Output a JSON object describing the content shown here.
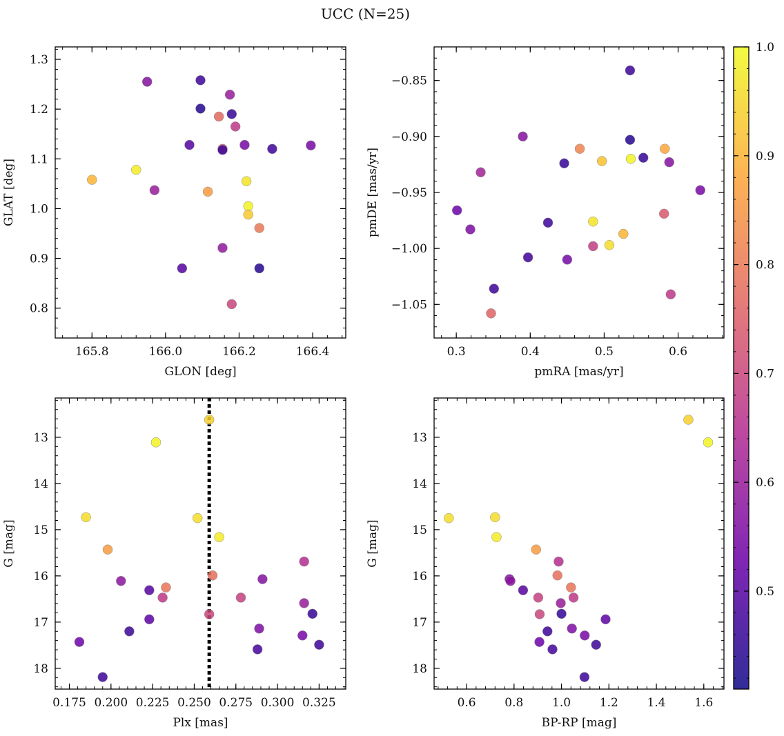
{
  "figure": {
    "title": "UCC (N=25)"
  },
  "colorbar": {
    "range": [
      0.41,
      1.0
    ],
    "ticks": [
      0.5,
      0.6,
      0.7,
      0.8,
      0.9,
      1.0
    ],
    "tick_labels": [
      "0.5",
      "0.6",
      "0.7",
      "0.8",
      "0.9",
      "1.0"
    ],
    "colormap": [
      "#0d0887",
      "#6a00a8",
      "#b12a90",
      "#e16462",
      "#fca636",
      "#f0f921"
    ]
  },
  "chart_data": [
    {
      "type": "scatter",
      "xlabel": "GLON [deg]",
      "ylabel": "GLAT [deg]",
      "xlim": [
        165.7,
        166.49
      ],
      "ylim": [
        0.74,
        1.325
      ],
      "xticks": [
        165.8,
        166.0,
        166.2,
        166.4
      ],
      "xtick_labels": [
        "165.8",
        "166.0",
        "166.2",
        "166.4"
      ],
      "yticks": [
        0.8,
        0.9,
        1.0,
        1.1,
        1.2,
        1.3
      ],
      "ytick_labels": [
        "0.8",
        "0.9",
        "1.0",
        "1.1",
        "1.2",
        "1.3"
      ],
      "inverted_y": false,
      "grid": false,
      "points": [
        {
          "x": 165.95,
          "y": 1.255,
          "c": 0.57
        },
        {
          "x": 166.095,
          "y": 1.258,
          "c": 0.47
        },
        {
          "x": 166.175,
          "y": 1.229,
          "c": 0.6
        },
        {
          "x": 166.095,
          "y": 1.201,
          "c": 0.44
        },
        {
          "x": 166.145,
          "y": 1.185,
          "c": 0.77
        },
        {
          "x": 166.18,
          "y": 1.19,
          "c": 0.46
        },
        {
          "x": 166.19,
          "y": 1.165,
          "c": 0.67
        },
        {
          "x": 166.065,
          "y": 1.128,
          "c": 0.5
        },
        {
          "x": 166.155,
          "y": 1.12,
          "c": 0.74
        },
        {
          "x": 166.155,
          "y": 1.118,
          "c": 0.47
        },
        {
          "x": 166.215,
          "y": 1.128,
          "c": 0.55
        },
        {
          "x": 166.29,
          "y": 1.12,
          "c": 0.47
        },
        {
          "x": 166.395,
          "y": 1.127,
          "c": 0.55
        },
        {
          "x": 165.8,
          "y": 1.058,
          "c": 0.9
        },
        {
          "x": 165.92,
          "y": 1.078,
          "c": 0.98
        },
        {
          "x": 165.97,
          "y": 1.037,
          "c": 0.6
        },
        {
          "x": 166.115,
          "y": 1.034,
          "c": 0.86
        },
        {
          "x": 166.22,
          "y": 1.055,
          "c": 0.97
        },
        {
          "x": 166.225,
          "y": 1.005,
          "c": 0.99
        },
        {
          "x": 166.225,
          "y": 0.988,
          "c": 0.93
        },
        {
          "x": 166.255,
          "y": 0.961,
          "c": 0.8
        },
        {
          "x": 166.155,
          "y": 0.921,
          "c": 0.59
        },
        {
          "x": 166.045,
          "y": 0.88,
          "c": 0.5
        },
        {
          "x": 166.255,
          "y": 0.88,
          "c": 0.44
        },
        {
          "x": 166.18,
          "y": 0.808,
          "c": 0.7
        }
      ]
    },
    {
      "type": "scatter",
      "xlabel": "pmRA [mas/yr]",
      "ylabel": "pmDE [mas/yr]",
      "xlim": [
        0.27,
        0.662
      ],
      "ylim": [
        -1.08,
        -0.82
      ],
      "xticks": [
        0.3,
        0.4,
        0.5,
        0.6
      ],
      "xtick_labels": [
        "0.3",
        "0.4",
        "0.5",
        "0.6"
      ],
      "yticks": [
        -1.05,
        -1.0,
        -0.95,
        -0.9,
        -0.85
      ],
      "ytick_labels": [
        "−1.05",
        "−1.00",
        "−0.95",
        "−0.90",
        "−0.85"
      ],
      "inverted_y": false,
      "grid": false,
      "points": [
        {
          "x": 0.535,
          "y": -0.841,
          "c": 0.47
        },
        {
          "x": 0.39,
          "y": -0.9,
          "c": 0.57
        },
        {
          "x": 0.535,
          "y": -0.903,
          "c": 0.44
        },
        {
          "x": 0.467,
          "y": -0.911,
          "c": 0.82
        },
        {
          "x": 0.582,
          "y": -0.911,
          "c": 0.88
        },
        {
          "x": 0.497,
          "y": -0.922,
          "c": 0.92
        },
        {
          "x": 0.536,
          "y": -0.92,
          "c": 0.99
        },
        {
          "x": 0.553,
          "y": -0.919,
          "c": 0.46
        },
        {
          "x": 0.446,
          "y": -0.924,
          "c": 0.46
        },
        {
          "x": 0.588,
          "y": -0.923,
          "c": 0.57
        },
        {
          "x": 0.333,
          "y": -0.932,
          "c": 0.62
        },
        {
          "x": 0.63,
          "y": -0.948,
          "c": 0.55
        },
        {
          "x": 0.301,
          "y": -0.966,
          "c": 0.53
        },
        {
          "x": 0.581,
          "y": -0.969,
          "c": 0.74
        },
        {
          "x": 0.485,
          "y": -0.976,
          "c": 0.97
        },
        {
          "x": 0.424,
          "y": -0.977,
          "c": 0.47
        },
        {
          "x": 0.319,
          "y": -0.983,
          "c": 0.56
        },
        {
          "x": 0.526,
          "y": -0.987,
          "c": 0.9
        },
        {
          "x": 0.485,
          "y": -0.998,
          "c": 0.68
        },
        {
          "x": 0.507,
          "y": -0.997,
          "c": 0.96
        },
        {
          "x": 0.397,
          "y": -1.008,
          "c": 0.47
        },
        {
          "x": 0.45,
          "y": -1.01,
          "c": 0.55
        },
        {
          "x": 0.351,
          "y": -1.036,
          "c": 0.47
        },
        {
          "x": 0.59,
          "y": -1.041,
          "c": 0.67
        },
        {
          "x": 0.347,
          "y": -1.058,
          "c": 0.76
        }
      ]
    },
    {
      "type": "scatter",
      "xlabel": "Plx [mas]",
      "ylabel": "G [mag]",
      "xlim": [
        0.1665,
        0.341
      ],
      "ylim": [
        18.45,
        12.15
      ],
      "xticks": [
        0.175,
        0.2,
        0.225,
        0.25,
        0.275,
        0.3,
        0.325
      ],
      "xtick_labels": [
        "0.175",
        "0.200",
        "0.225",
        "0.250",
        "0.275",
        "0.300",
        "0.325"
      ],
      "yticks": [
        13,
        14,
        15,
        16,
        17,
        18
      ],
      "ytick_labels": [
        "13",
        "14",
        "15",
        "16",
        "17",
        "18"
      ],
      "inverted_y": true,
      "grid": false,
      "vline": {
        "x": 0.259,
        "style": "dotted",
        "color": "#000000"
      },
      "points": [
        {
          "x": 0.259,
          "y": 12.62,
          "c": 0.94
        },
        {
          "x": 0.227,
          "y": 13.11,
          "c": 0.99
        },
        {
          "x": 0.185,
          "y": 14.73,
          "c": 0.96
        },
        {
          "x": 0.252,
          "y": 14.75,
          "c": 0.96
        },
        {
          "x": 0.265,
          "y": 15.16,
          "c": 0.98
        },
        {
          "x": 0.198,
          "y": 15.43,
          "c": 0.86
        },
        {
          "x": 0.316,
          "y": 15.69,
          "c": 0.65
        },
        {
          "x": 0.261,
          "y": 15.99,
          "c": 0.78
        },
        {
          "x": 0.206,
          "y": 16.11,
          "c": 0.58
        },
        {
          "x": 0.291,
          "y": 16.07,
          "c": 0.57
        },
        {
          "x": 0.233,
          "y": 16.25,
          "c": 0.79
        },
        {
          "x": 0.223,
          "y": 16.31,
          "c": 0.5
        },
        {
          "x": 0.231,
          "y": 16.47,
          "c": 0.67
        },
        {
          "x": 0.278,
          "y": 16.47,
          "c": 0.69
        },
        {
          "x": 0.316,
          "y": 16.59,
          "c": 0.6
        },
        {
          "x": 0.259,
          "y": 16.83,
          "c": 0.7
        },
        {
          "x": 0.321,
          "y": 16.82,
          "c": 0.46
        },
        {
          "x": 0.223,
          "y": 16.94,
          "c": 0.51
        },
        {
          "x": 0.289,
          "y": 17.14,
          "c": 0.56
        },
        {
          "x": 0.211,
          "y": 17.2,
          "c": 0.47
        },
        {
          "x": 0.315,
          "y": 17.29,
          "c": 0.55
        },
        {
          "x": 0.181,
          "y": 17.43,
          "c": 0.53
        },
        {
          "x": 0.325,
          "y": 17.49,
          "c": 0.47
        },
        {
          "x": 0.288,
          "y": 17.59,
          "c": 0.48
        },
        {
          "x": 0.195,
          "y": 18.19,
          "c": 0.47
        }
      ]
    },
    {
      "type": "scatter",
      "xlabel": "BP-RP [mag]",
      "ylabel": "G [mag]",
      "xlim": [
        0.463,
        1.685
      ],
      "ylim": [
        18.45,
        12.15
      ],
      "xticks": [
        0.6,
        0.8,
        1.0,
        1.2,
        1.4,
        1.6
      ],
      "xtick_labels": [
        "0.6",
        "0.8",
        "1.0",
        "1.2",
        "1.4",
        "1.6"
      ],
      "yticks": [
        13,
        14,
        15,
        16,
        17,
        18
      ],
      "ytick_labels": [
        "13",
        "14",
        "15",
        "16",
        "17",
        "18"
      ],
      "inverted_y": true,
      "grid": false,
      "points": [
        {
          "x": 1.535,
          "y": 12.62,
          "c": 0.94
        },
        {
          "x": 1.618,
          "y": 13.11,
          "c": 0.99
        },
        {
          "x": 0.525,
          "y": 14.75,
          "c": 0.96
        },
        {
          "x": 0.72,
          "y": 14.73,
          "c": 0.96
        },
        {
          "x": 0.726,
          "y": 15.16,
          "c": 0.98
        },
        {
          "x": 0.893,
          "y": 15.43,
          "c": 0.86
        },
        {
          "x": 0.988,
          "y": 15.69,
          "c": 0.65
        },
        {
          "x": 0.983,
          "y": 15.99,
          "c": 0.78
        },
        {
          "x": 0.781,
          "y": 16.07,
          "c": 0.57
        },
        {
          "x": 0.785,
          "y": 16.11,
          "c": 0.58
        },
        {
          "x": 1.04,
          "y": 16.25,
          "c": 0.79
        },
        {
          "x": 0.838,
          "y": 16.31,
          "c": 0.5
        },
        {
          "x": 0.902,
          "y": 16.47,
          "c": 0.69
        },
        {
          "x": 1.051,
          "y": 16.47,
          "c": 0.67
        },
        {
          "x": 0.997,
          "y": 16.59,
          "c": 0.6
        },
        {
          "x": 0.908,
          "y": 16.83,
          "c": 0.7
        },
        {
          "x": 1.0,
          "y": 16.82,
          "c": 0.46
        },
        {
          "x": 1.186,
          "y": 16.94,
          "c": 0.51
        },
        {
          "x": 1.044,
          "y": 17.14,
          "c": 0.56
        },
        {
          "x": 0.941,
          "y": 17.2,
          "c": 0.47
        },
        {
          "x": 1.098,
          "y": 17.29,
          "c": 0.55
        },
        {
          "x": 0.907,
          "y": 17.43,
          "c": 0.53
        },
        {
          "x": 1.146,
          "y": 17.49,
          "c": 0.47
        },
        {
          "x": 0.962,
          "y": 17.59,
          "c": 0.48
        },
        {
          "x": 1.097,
          "y": 18.19,
          "c": 0.47
        }
      ]
    }
  ]
}
